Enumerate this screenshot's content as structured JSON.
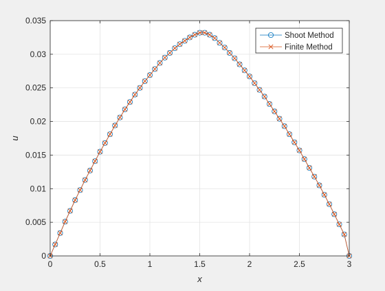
{
  "chart_data": {
    "type": "line",
    "title": "",
    "xlabel": "x",
    "ylabel": "u",
    "xlim": [
      0,
      3
    ],
    "ylim": [
      0,
      0.035
    ],
    "x_ticks": [
      0,
      0.5,
      1,
      1.5,
      2,
      2.5,
      3
    ],
    "x_tick_labels": [
      "0",
      "0.5",
      "1",
      "1.5",
      "2",
      "2.5",
      "3"
    ],
    "y_ticks": [
      0,
      0.005,
      0.01,
      0.015,
      0.02,
      0.025,
      0.03,
      0.035
    ],
    "y_tick_labels": [
      "0",
      "0.005",
      "0.01",
      "0.015",
      "0.02",
      "0.025",
      "0.03",
      "0.035"
    ],
    "grid": true,
    "legend_position": "top-right",
    "series": [
      {
        "name": "Shoot Method",
        "marker": "circle",
        "color": "#0072bd",
        "x": [
          0,
          0.05,
          0.1,
          0.15,
          0.2,
          0.25,
          0.3,
          0.35,
          0.4,
          0.45,
          0.5,
          0.55,
          0.6,
          0.65,
          0.7,
          0.75,
          0.8,
          0.85,
          0.9,
          0.95,
          1.0,
          1.05,
          1.1,
          1.15,
          1.2,
          1.25,
          1.3,
          1.35,
          1.4,
          1.45,
          1.5,
          1.55,
          1.6,
          1.65,
          1.7,
          1.75,
          1.8,
          1.85,
          1.9,
          1.95,
          2.0,
          2.05,
          2.1,
          2.15,
          2.2,
          2.25,
          2.3,
          2.35,
          2.4,
          2.45,
          2.5,
          2.55,
          2.6,
          2.65,
          2.7,
          2.75,
          2.8,
          2.85,
          2.9,
          2.95,
          3.0
        ],
        "y": [
          0,
          0.0017,
          0.0034,
          0.0051,
          0.0067,
          0.0083,
          0.0098,
          0.0113,
          0.0127,
          0.0141,
          0.0155,
          0.0168,
          0.0181,
          0.0194,
          0.0206,
          0.0218,
          0.0229,
          0.024,
          0.025,
          0.026,
          0.0269,
          0.0278,
          0.0287,
          0.0295,
          0.0302,
          0.0309,
          0.0315,
          0.032,
          0.0325,
          0.0329,
          0.0332,
          0.0332,
          0.0329,
          0.0324,
          0.0317,
          0.031,
          0.0302,
          0.0294,
          0.0285,
          0.0276,
          0.0267,
          0.0257,
          0.0247,
          0.0237,
          0.0226,
          0.0215,
          0.0204,
          0.0193,
          0.0181,
          0.0169,
          0.0157,
          0.0144,
          0.0131,
          0.0118,
          0.0105,
          0.0091,
          0.0077,
          0.0062,
          0.0047,
          0.0032,
          0
        ]
      },
      {
        "name": "Finite Method",
        "marker": "x",
        "color": "#d95319",
        "x": [
          0,
          0.05,
          0.1,
          0.15,
          0.2,
          0.25,
          0.3,
          0.35,
          0.4,
          0.45,
          0.5,
          0.55,
          0.6,
          0.65,
          0.7,
          0.75,
          0.8,
          0.85,
          0.9,
          0.95,
          1.0,
          1.05,
          1.1,
          1.15,
          1.2,
          1.25,
          1.3,
          1.35,
          1.4,
          1.45,
          1.5,
          1.55,
          1.6,
          1.65,
          1.7,
          1.75,
          1.8,
          1.85,
          1.9,
          1.95,
          2.0,
          2.05,
          2.1,
          2.15,
          2.2,
          2.25,
          2.3,
          2.35,
          2.4,
          2.45,
          2.5,
          2.55,
          2.6,
          2.65,
          2.7,
          2.75,
          2.8,
          2.85,
          2.9,
          2.95,
          3.0
        ],
        "y": [
          0,
          0.0017,
          0.0034,
          0.0051,
          0.0067,
          0.0083,
          0.0098,
          0.0113,
          0.0127,
          0.0141,
          0.0155,
          0.0168,
          0.0181,
          0.0194,
          0.0206,
          0.0218,
          0.0229,
          0.024,
          0.025,
          0.026,
          0.0269,
          0.0278,
          0.0287,
          0.0295,
          0.0302,
          0.0309,
          0.0315,
          0.032,
          0.0325,
          0.0329,
          0.0332,
          0.0332,
          0.0329,
          0.0324,
          0.0317,
          0.031,
          0.0302,
          0.0294,
          0.0285,
          0.0276,
          0.0267,
          0.0257,
          0.0247,
          0.0237,
          0.0226,
          0.0215,
          0.0204,
          0.0193,
          0.0181,
          0.0169,
          0.0157,
          0.0144,
          0.0131,
          0.0118,
          0.0105,
          0.0091,
          0.0077,
          0.0062,
          0.0047,
          0.0032,
          0
        ]
      }
    ]
  }
}
